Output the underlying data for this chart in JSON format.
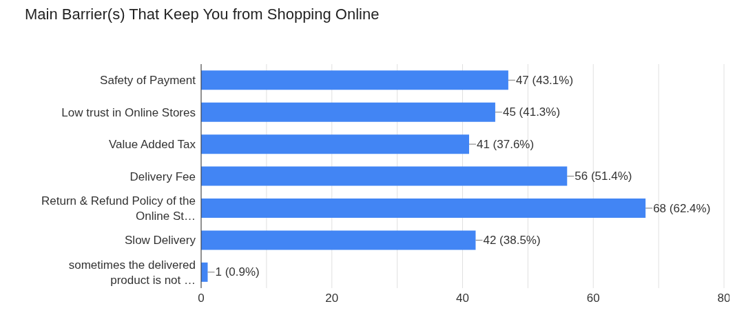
{
  "chart_data": {
    "type": "bar",
    "orientation": "horizontal",
    "title": "Main Barrier(s) That Keep You from Shopping Online",
    "categories": [
      "Safety of Payment",
      "Low trust in Online Stores",
      "Value Added Tax",
      "Delivery Fee",
      "Return & Refund Policy of the Online St…",
      "Slow Delivery",
      "sometimes the delivered product is not …"
    ],
    "values": [
      47,
      45,
      41,
      56,
      68,
      42,
      1
    ],
    "value_labels": [
      "47 (43.1%)",
      "45 (41.3%)",
      "41 (37.6%)",
      "56 (51.4%)",
      "68 (62.4%)",
      "42 (38.5%)",
      "1 (0.9%)"
    ],
    "color": "#4285f4",
    "xlim": [
      0,
      80
    ],
    "xticks": [
      0,
      {
        "value": 10,
        "label": null
      },
      20,
      {
        "value": 30,
        "label": null
      },
      40,
      {
        "value": 50,
        "label": null
      },
      60,
      {
        "value": 70,
        "label": null
      },
      80
    ],
    "grid": "x"
  }
}
